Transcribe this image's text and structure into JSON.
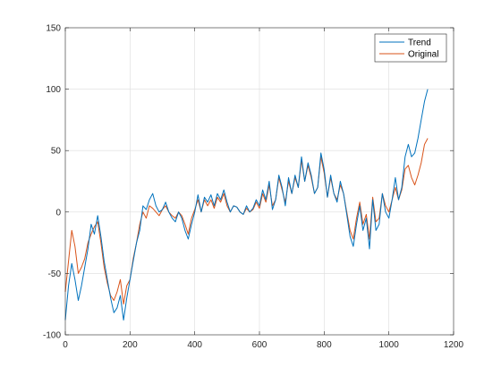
{
  "chart_data": {
    "type": "line",
    "title": "",
    "xlabel": "",
    "ylabel": "",
    "xlim": [
      0,
      1200
    ],
    "ylim": [
      -100,
      150
    ],
    "xticks": [
      0,
      200,
      400,
      600,
      800,
      1000,
      1200
    ],
    "yticks": [
      -100,
      -50,
      0,
      50,
      100,
      150
    ],
    "grid": true,
    "legend_position": "top-right",
    "series": [
      {
        "name": "Trend",
        "color": "#0072BD",
        "x": [
          0,
          10,
          20,
          30,
          40,
          50,
          60,
          70,
          80,
          90,
          100,
          110,
          120,
          130,
          140,
          150,
          160,
          170,
          180,
          190,
          200,
          210,
          220,
          230,
          240,
          250,
          260,
          270,
          280,
          290,
          300,
          310,
          320,
          330,
          340,
          350,
          360,
          370,
          380,
          390,
          400,
          410,
          420,
          430,
          440,
          450,
          460,
          470,
          480,
          490,
          500,
          510,
          520,
          530,
          540,
          550,
          560,
          570,
          580,
          590,
          600,
          610,
          620,
          630,
          640,
          650,
          660,
          670,
          680,
          690,
          700,
          710,
          720,
          730,
          740,
          750,
          760,
          770,
          780,
          790,
          800,
          810,
          820,
          830,
          840,
          850,
          860,
          870,
          880,
          890,
          900,
          910,
          920,
          930,
          940,
          950,
          960,
          970,
          980,
          990,
          1000,
          1010,
          1020,
          1030,
          1040,
          1050,
          1060,
          1070,
          1080,
          1090,
          1100,
          1110,
          1120
        ],
        "values": [
          -88,
          -60,
          -42,
          -55,
          -72,
          -60,
          -45,
          -30,
          -10,
          -18,
          -3,
          -20,
          -40,
          -55,
          -70,
          -82,
          -78,
          -68,
          -88,
          -70,
          -55,
          -40,
          -25,
          -15,
          5,
          2,
          10,
          15,
          5,
          0,
          2,
          8,
          0,
          -5,
          -8,
          0,
          -5,
          -15,
          -22,
          -10,
          0,
          14,
          0,
          12,
          8,
          14,
          5,
          15,
          10,
          18,
          8,
          0,
          5,
          4,
          0,
          -2,
          5,
          0,
          3,
          10,
          5,
          18,
          10,
          25,
          2,
          10,
          30,
          20,
          5,
          28,
          15,
          30,
          20,
          45,
          25,
          40,
          30,
          15,
          20,
          48,
          35,
          12,
          30,
          15,
          8,
          25,
          15,
          -2,
          -20,
          -28,
          -10,
          5,
          -15,
          -5,
          -30,
          10,
          -15,
          -10,
          15,
          0,
          -5,
          10,
          28,
          10,
          20,
          45,
          55,
          45,
          48,
          60,
          75,
          90,
          100
        ]
      },
      {
        "name": "Original",
        "color": "#D95319",
        "x": [
          0,
          10,
          20,
          30,
          40,
          50,
          60,
          70,
          80,
          90,
          100,
          110,
          120,
          130,
          140,
          150,
          160,
          170,
          180,
          190,
          200,
          210,
          220,
          230,
          240,
          250,
          260,
          270,
          280,
          290,
          300,
          310,
          320,
          330,
          340,
          350,
          360,
          370,
          380,
          390,
          400,
          410,
          420,
          430,
          440,
          450,
          460,
          470,
          480,
          490,
          500,
          510,
          520,
          530,
          540,
          550,
          560,
          570,
          580,
          590,
          600,
          610,
          620,
          630,
          640,
          650,
          660,
          670,
          680,
          690,
          700,
          710,
          720,
          730,
          740,
          750,
          760,
          770,
          780,
          790,
          800,
          810,
          820,
          830,
          840,
          850,
          860,
          870,
          880,
          890,
          900,
          910,
          920,
          930,
          940,
          950,
          960,
          970,
          980,
          990,
          1000,
          1010,
          1020,
          1030,
          1040,
          1050,
          1060,
          1070,
          1080,
          1090,
          1100,
          1110,
          1120
        ],
        "values": [
          -65,
          -40,
          -15,
          -28,
          -50,
          -45,
          -38,
          -25,
          -18,
          -12,
          -8,
          -25,
          -45,
          -58,
          -68,
          -72,
          -65,
          -55,
          -75,
          -60,
          -55,
          -38,
          -25,
          -10,
          0,
          -5,
          5,
          3,
          0,
          -3,
          2,
          5,
          0,
          -3,
          -5,
          0,
          -3,
          -10,
          -18,
          -5,
          2,
          10,
          0,
          10,
          5,
          10,
          3,
          12,
          8,
          15,
          5,
          0,
          5,
          4,
          0,
          -2,
          3,
          0,
          2,
          8,
          3,
          15,
          8,
          22,
          5,
          10,
          28,
          18,
          8,
          25,
          15,
          28,
          20,
          42,
          25,
          38,
          28,
          15,
          20,
          45,
          32,
          12,
          28,
          15,
          10,
          22,
          15,
          0,
          -15,
          -22,
          -5,
          8,
          -10,
          -2,
          -22,
          12,
          -8,
          -5,
          15,
          5,
          0,
          10,
          20,
          10,
          18,
          35,
          38,
          28,
          22,
          30,
          40,
          55,
          60
        ]
      }
    ]
  }
}
